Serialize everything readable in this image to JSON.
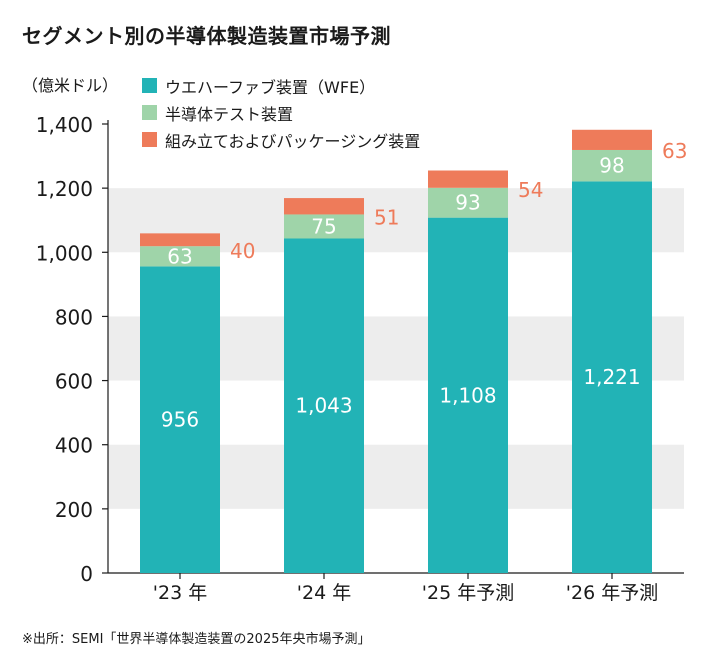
{
  "title": "セグメント別の半導体製造装置市場予測",
  "unit_label": "（億米ドル）",
  "source": "※出所：SEMI「世界半導体製造装置の2025年央市場予測」",
  "colors": {
    "wfe": "#22b3b6",
    "test": "#9fd4a9",
    "assembly": "#ee7b5a",
    "band": "#ededed",
    "axis": "#1a1a1a"
  },
  "chart_data": {
    "type": "bar",
    "stacked": true,
    "categories": [
      "'23 年",
      "'24 年",
      "'25 年予測",
      "'26 年予測"
    ],
    "series": [
      {
        "name": "ウエハーファブ装置（WFE）",
        "values": [
          956,
          1043,
          1108,
          1221
        ],
        "labels": [
          "956",
          "1,043",
          "1,108",
          "1,221"
        ]
      },
      {
        "name": "半導体テスト装置",
        "values": [
          63,
          75,
          93,
          98
        ],
        "labels": [
          "63",
          "75",
          "93",
          "98"
        ]
      },
      {
        "name": "組み立ておよびパッケージング装置",
        "values": [
          40,
          51,
          54,
          63
        ],
        "labels": [
          "40",
          "51",
          "54",
          "63"
        ]
      }
    ],
    "ylim": [
      0,
      1400
    ],
    "yticks": [
      0,
      200,
      400,
      600,
      800,
      1000,
      1200,
      1400
    ],
    "ytick_labels": [
      "0",
      "200",
      "400",
      "600",
      "800",
      "1,000",
      "1,200",
      "1,400"
    ],
    "grid": "alternating horizontal bands",
    "legend_position": "top-left"
  }
}
